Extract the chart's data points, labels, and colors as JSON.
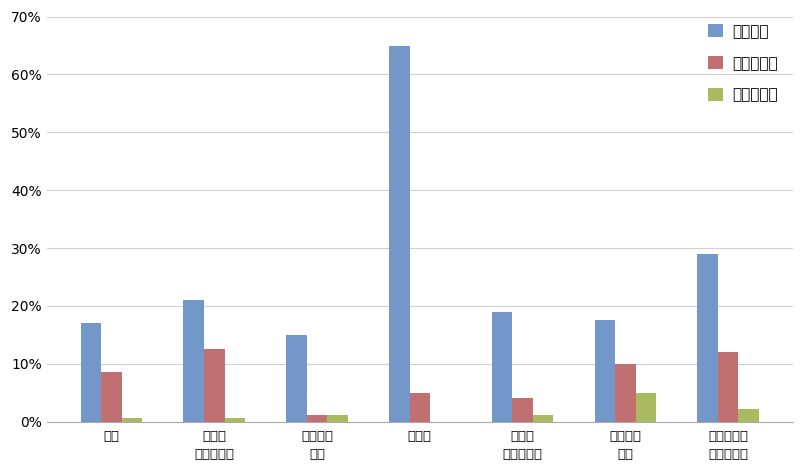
{
  "categories": [
    "重傷",
    "和傷や\n引っかき傷",
    "呼吸器の\n問題",
    "膚胱炎",
    "皮膚の\nアレルギー",
    "室内での\n粗相",
    "脈絡のない\n気分の変化"
  ],
  "series": {
    "変化なし": [
      0.17,
      0.21,
      0.15,
      0.65,
      0.19,
      0.175,
      0.29
    ],
    "低下・減少": [
      0.085,
      0.125,
      0.012,
      0.05,
      0.04,
      0.1,
      0.12
    ],
    "上昇・増加": [
      0.007,
      0.007,
      0.012,
      0.0,
      0.012,
      0.05,
      0.022
    ]
  },
  "colors": {
    "変化なし": "#7397c8",
    "低下・減少": "#c07070",
    "上昇・増加": "#aaba60"
  },
  "ylim": [
    0,
    0.7
  ],
  "yticks": [
    0.0,
    0.1,
    0.2,
    0.3,
    0.4,
    0.5,
    0.6,
    0.7
  ],
  "ytick_labels": [
    "0%",
    "10%",
    "20%",
    "30%",
    "40%",
    "50%",
    "60%",
    "70%"
  ],
  "background_color": "#ffffff",
  "grid_color": "#d0d0d0",
  "legend_order": [
    "変化なし",
    "低下・減少",
    "上昇・増加"
  ]
}
